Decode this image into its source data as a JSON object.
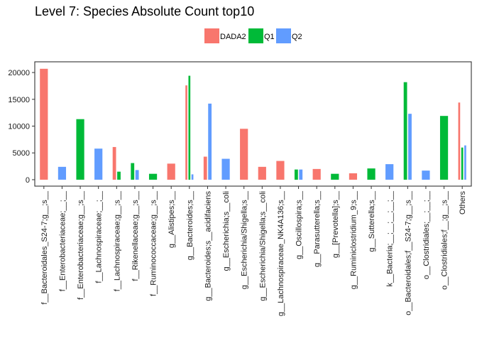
{
  "chart_data": {
    "type": "bar",
    "title": "Level 7: Species Absolute Count top10",
    "xlabel": "",
    "ylabel": "",
    "ylim": [
      -1200,
      22000
    ],
    "yticks": [
      0,
      5000,
      10000,
      15000,
      20000
    ],
    "ytick_labels": [
      "0",
      "5000",
      "10000",
      "15000",
      "20000"
    ],
    "legend_position": "top-center",
    "grid": false,
    "categories": [
      "f__Bacteroidales_S24-7;g__;s__",
      "f__Enterobacteriaceae;__;__",
      "f__Enterobacteriaceae;g__;s__",
      "f__Lachnospiraceae;__;__",
      "f__Lachnospiraceae;g__;s__",
      "f__Rikenellaceae;g__;s__",
      "f__Ruminococcaceae;g__;s__",
      "g__Alistipes;s__",
      "g__Bacteroides;s__",
      "g__Bacteroides;s__acidifaciens",
      "g__Escherichia;s__coli",
      "g__Escherichia/Shigella;s__",
      "g__Escherichia/Shigella;s__coli",
      "g__Lachnospiraceae_NK4A136;s__",
      "g__Oscillospira;s__",
      "g__Parasutterella;s__",
      "g__[Prevotella];s__",
      "g__Ruminiclostridium_9;s__",
      "g__Sutterella;s__",
      "k__Bacteria;__;__;__;__;__",
      "o__Bacteroidales;f__S24-7;g__;s__",
      "o__Clostridiales;__;__;__",
      "o__Clostridiales;f__;g__;s__",
      "Others"
    ],
    "series": [
      {
        "name": "DADA2",
        "color": "#F8766D",
        "values": [
          20700,
          null,
          null,
          null,
          6100,
          null,
          null,
          3000,
          17600,
          4300,
          null,
          9500,
          2400,
          3500,
          null,
          2000,
          null,
          1200,
          null,
          null,
          null,
          null,
          null,
          14400
        ]
      },
      {
        "name": "Q1",
        "color": "#00BA38",
        "values": [
          null,
          null,
          11300,
          null,
          1500,
          3100,
          1100,
          null,
          19400,
          null,
          null,
          null,
          null,
          null,
          1900,
          null,
          1100,
          null,
          2100,
          null,
          18200,
          null,
          11900,
          6000
        ]
      },
      {
        "name": "Q2",
        "color": "#619CFF",
        "values": [
          null,
          2400,
          null,
          5800,
          null,
          1800,
          null,
          null,
          1000,
          14200,
          3900,
          null,
          null,
          null,
          1900,
          null,
          null,
          null,
          null,
          2900,
          12300,
          1700,
          null,
          6400
        ]
      }
    ]
  }
}
